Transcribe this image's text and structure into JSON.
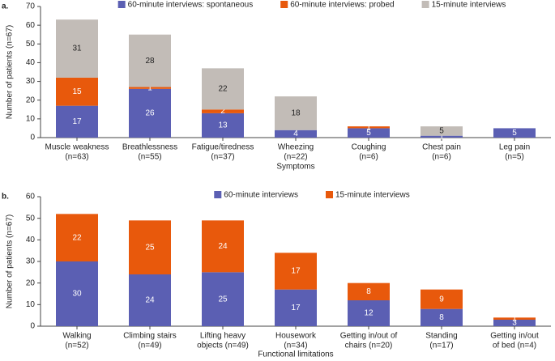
{
  "chart_data": [
    {
      "type": "bar",
      "stacked": true,
      "panel": "a.",
      "ylabel": "Number of patients (n=67)",
      "xlabel": "Symptoms",
      "categories": [
        [
          "Muscle weakness",
          "(n=63)"
        ],
        [
          "Breathlessness",
          "(n=55)"
        ],
        [
          "Fatigue/tiredness",
          "(n=37)"
        ],
        [
          "Wheezing",
          "(n=22)"
        ],
        [
          "Coughing",
          "(n=6)"
        ],
        [
          "Chest pain",
          "(n=6)"
        ],
        [
          "Leg pain",
          "(n=5)"
        ]
      ],
      "series": [
        {
          "name": "60-minute interviews: spontaneous",
          "color": "#5b5fb3",
          "label_color": "#ffffff",
          "values": [
            17,
            26,
            13,
            4,
            5,
            1,
            5
          ]
        },
        {
          "name": "60-minute interviews: probed",
          "color": "#e8590c",
          "label_color": "#ffffff",
          "values": [
            15,
            1,
            2,
            0,
            1,
            0,
            0
          ]
        },
        {
          "name": "15-minute interviews",
          "color": "#c2bcb7",
          "label_color": "#222222",
          "values": [
            31,
            28,
            22,
            18,
            0,
            5,
            0
          ]
        }
      ],
      "ylim": [
        0,
        70
      ],
      "yticks": [
        0,
        10,
        20,
        30,
        40,
        50,
        60,
        70
      ]
    },
    {
      "type": "bar",
      "stacked": true,
      "panel": "b.",
      "ylabel": "Number of patients (n=67)",
      "xlabel": "Functional limitations",
      "categories": [
        [
          "Walking",
          "(n=52)"
        ],
        [
          "Climbing stairs",
          "(n=49)"
        ],
        [
          "Lifting heavy",
          "objects (n=49)"
        ],
        [
          "Housework",
          "(n=34)"
        ],
        [
          "Getting in/out of",
          "chairs (n=20)"
        ],
        [
          "Standing",
          "(n=17)"
        ],
        [
          "Getting in/out",
          "of bed (n=4)"
        ]
      ],
      "series": [
        {
          "name": "60-minute interviews",
          "color": "#5b5fb3",
          "label_color": "#ffffff",
          "values": [
            30,
            24,
            25,
            17,
            12,
            8,
            3
          ]
        },
        {
          "name": "15-minute interviews",
          "color": "#e8590c",
          "label_color": "#ffffff",
          "values": [
            22,
            25,
            24,
            17,
            8,
            9,
            1
          ]
        }
      ],
      "ylim": [
        0,
        60
      ],
      "yticks": [
        0,
        10,
        20,
        30,
        40,
        50,
        60
      ]
    }
  ]
}
